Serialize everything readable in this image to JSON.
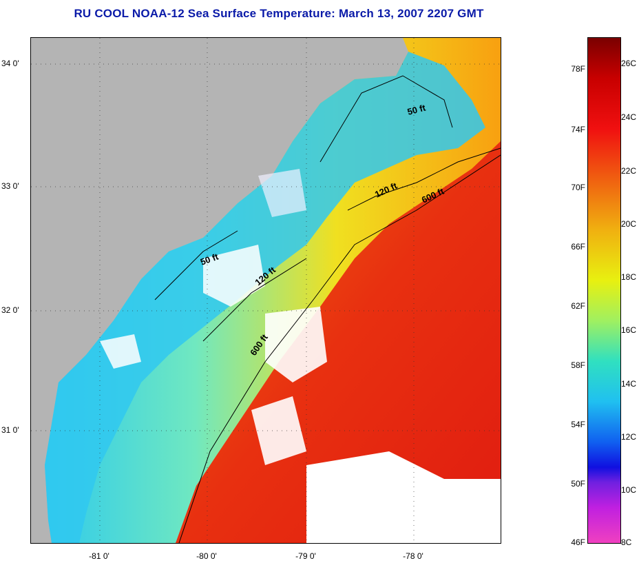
{
  "title": "RU COOL  NOAA-12  Sea Surface Temperature:  March 13, 2007 2207 GMT",
  "map": {
    "lat_labels": [
      "34 0'",
      "33 0'",
      "32 0'",
      "31 0'"
    ],
    "lon_labels": [
      "-81 0'",
      "-80 0'",
      "-79 0'",
      "-78 0'"
    ],
    "lat_range": [
      30.2,
      34.2
    ],
    "lon_range": [
      -81.7,
      -77.2
    ],
    "isobaths": [
      "50 ft",
      "120 ft",
      "600 ft",
      "50 ft",
      "120 ft",
      "600 ft"
    ],
    "colors": {
      "land": "#b4b4b4",
      "cloud": "#ffffff",
      "gulf_stream": "#e83010",
      "shelf_cold": "#29c8f0",
      "mid_shelf": "#f0e020"
    }
  },
  "colorbar": {
    "f_labels": [
      "78F",
      "74F",
      "70F",
      "66F",
      "62F",
      "58F",
      "54F",
      "50F",
      "46F"
    ],
    "c_labels": [
      "26C",
      "24C",
      "22C",
      "20C",
      "18C",
      "16C",
      "14C",
      "12C",
      "10C",
      "8C"
    ],
    "c_range": [
      8,
      27.2
    ]
  }
}
